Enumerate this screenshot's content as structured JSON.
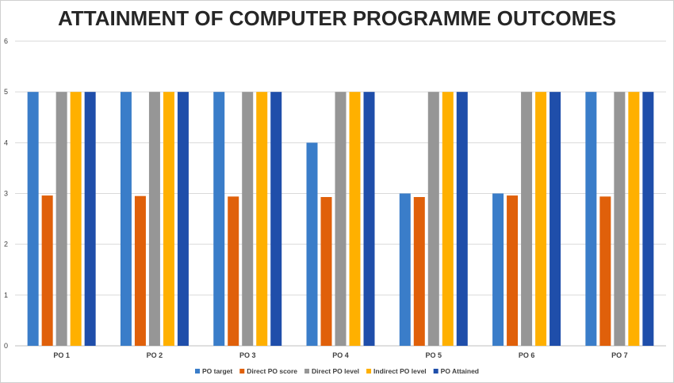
{
  "chart_data": {
    "type": "bar",
    "title": "ATTAINMENT OF COMPUTER PROGRAMME OUTCOMES",
    "xlabel": "",
    "ylabel": "",
    "ylim": [
      0,
      6
    ],
    "yticks": [
      "0",
      "1",
      "2",
      "3",
      "4",
      "5",
      "6"
    ],
    "grid": true,
    "legend_position": "bottom",
    "categories": [
      "PO 1",
      "PO 2",
      "PO 3",
      "PO 4",
      "PO 5",
      "PO 6",
      "PO 7"
    ],
    "series": [
      {
        "name": "PO target",
        "color": "#3A7DC9",
        "values": [
          5,
          5,
          5,
          4,
          3,
          3,
          5
        ]
      },
      {
        "name": "Direct PO score",
        "color": "#E0600A",
        "values": [
          2.96,
          2.95,
          2.94,
          2.93,
          2.93,
          2.96,
          2.94
        ]
      },
      {
        "name": "Direct PO level",
        "color": "#969696",
        "values": [
          5,
          5,
          5,
          5,
          5,
          5,
          5
        ]
      },
      {
        "name": "Indirect PO level",
        "color": "#FFB000",
        "values": [
          5,
          5,
          5,
          5,
          5,
          5,
          5
        ]
      },
      {
        "name": "PO Attained",
        "color": "#1F4EAA",
        "values": [
          5,
          5,
          5,
          5,
          5,
          5,
          5
        ]
      }
    ]
  }
}
